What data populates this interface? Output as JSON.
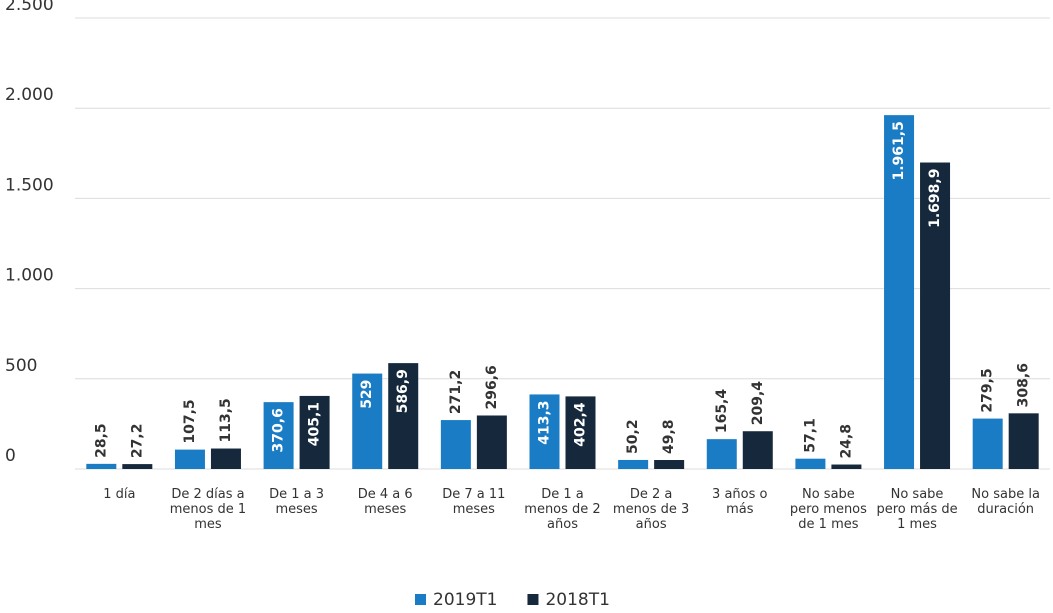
{
  "chart_data": {
    "type": "bar",
    "categories": [
      "1 día",
      "De 2 días a menos de 1 mes",
      "De 1 a 3 meses",
      "De 4 a 6 meses",
      "De 7 a 11 meses",
      "De 1 a menos de 2 años",
      "De 2 a menos de 3 años",
      "3 años o más",
      "No sabe pero menos de 1 mes",
      "No sabe pero más de 1 mes",
      "No sabe la duración"
    ],
    "series": [
      {
        "name": "2019T1",
        "color": "#1a7cc4",
        "values": [
          28.5,
          107.5,
          370.6,
          529,
          271.2,
          413.3,
          50.2,
          165.4,
          57.1,
          1961.5,
          279.5
        ],
        "value_labels": [
          "28,5",
          "107,5",
          "370,6",
          "529",
          "271,2",
          "413,3",
          "50,2",
          "165,4",
          "57,1",
          "1.961,5",
          "279,5"
        ]
      },
      {
        "name": "2018T1",
        "color": "#16283c",
        "values": [
          27.2,
          113.5,
          405.1,
          586.9,
          296.6,
          402.4,
          49.8,
          209.4,
          24.8,
          1698.9,
          308.6
        ],
        "value_labels": [
          "27,2",
          "113,5",
          "405,1",
          "586,9",
          "296,6",
          "402,4",
          "49,8",
          "209,4",
          "24,8",
          "1.698,9",
          "308,6"
        ]
      }
    ],
    "ylim": [
      0,
      2500
    ],
    "yticks": [
      0,
      500,
      {
        "value": 1000,
        "label": "1.000"
      },
      {
        "value": 1500,
        "label": "1.500"
      },
      {
        "value": 2000,
        "label": "2.000"
      },
      {
        "value": 2500,
        "label": "2.500"
      }
    ],
    "grid": true,
    "legend": "bottom"
  }
}
